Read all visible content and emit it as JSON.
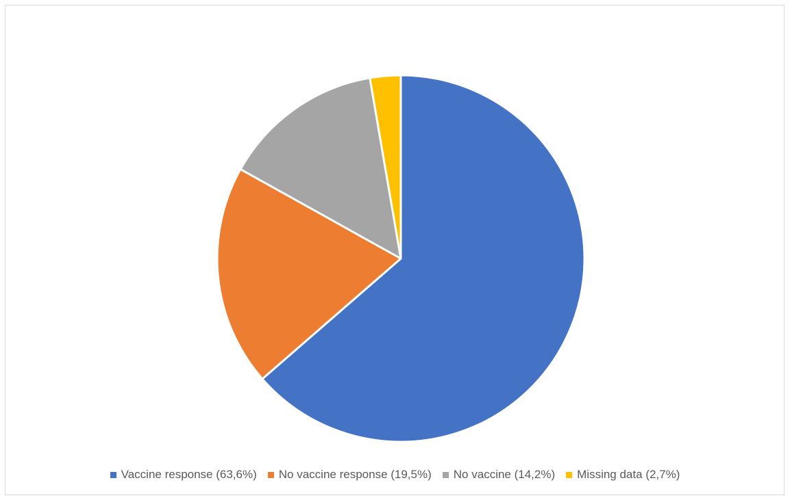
{
  "chart_data": {
    "type": "pie",
    "title": "",
    "categories": [
      "Vaccine response (63,6%)",
      "No vaccine response (19,5%)",
      "No vaccine (14,2%)",
      "Missing data (2,7%)"
    ],
    "values": [
      63.6,
      19.5,
      14.2,
      2.7
    ],
    "colors": [
      "#4472C4",
      "#ED7D31",
      "#A5A5A5",
      "#FFC000"
    ],
    "legend": "bottom"
  }
}
